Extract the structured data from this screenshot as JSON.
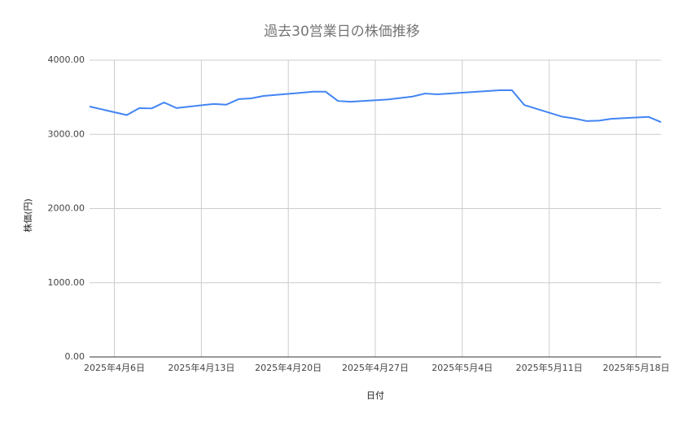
{
  "chart_data": {
    "type": "line",
    "title": "過去30営業日の株価推移",
    "x_label": "日付",
    "y_label": "株価(円)",
    "x": [
      "2025-04-04",
      "2025-04-07",
      "2025-04-08",
      "2025-04-09",
      "2025-04-10",
      "2025-04-11",
      "2025-04-14",
      "2025-04-15",
      "2025-04-16",
      "2025-04-17",
      "2025-04-18",
      "2025-04-21",
      "2025-04-22",
      "2025-04-23",
      "2025-04-24",
      "2025-04-25",
      "2025-04-28",
      "2025-04-30",
      "2025-05-01",
      "2025-05-02",
      "2025-05-07",
      "2025-05-08",
      "2025-05-09",
      "2025-05-12",
      "2025-05-13",
      "2025-05-14",
      "2025-05-15",
      "2025-05-16",
      "2025-05-19",
      "2025-05-20"
    ],
    "series": [
      {
        "name": "株価",
        "color": "#4285f4",
        "values": [
          3375,
          3260,
          3353,
          3350,
          3430,
          3355,
          3410,
          3400,
          3475,
          3485,
          3518,
          3560,
          3575,
          3575,
          3450,
          3440,
          3470,
          3510,
          3550,
          3540,
          3595,
          3595,
          3395,
          3240,
          3215,
          3180,
          3185,
          3210,
          3235,
          3165
        ]
      }
    ],
    "xlim": [
      "2025-04-04",
      "2025-05-20"
    ],
    "xticks": [
      {
        "value": "2025-04-06",
        "label": "2025年4月6日"
      },
      {
        "value": "2025-04-13",
        "label": "2025年4月13日"
      },
      {
        "value": "2025-04-20",
        "label": "2025年4月20日"
      },
      {
        "value": "2025-04-27",
        "label": "2025年4月27日"
      },
      {
        "value": "2025-05-04",
        "label": "2025年5月4日"
      },
      {
        "value": "2025-05-11",
        "label": "2025年5月11日"
      },
      {
        "value": "2025-05-18",
        "label": "2025年5月18日"
      }
    ],
    "ylim": [
      0,
      4000
    ],
    "yticks": [
      {
        "value": 0,
        "label": "0.00"
      },
      {
        "value": 1000,
        "label": "1000.00"
      },
      {
        "value": 2000,
        "label": "2000.00"
      },
      {
        "value": 3000,
        "label": "3000.00"
      },
      {
        "value": 4000,
        "label": "4000.00"
      }
    ],
    "grid": true
  }
}
